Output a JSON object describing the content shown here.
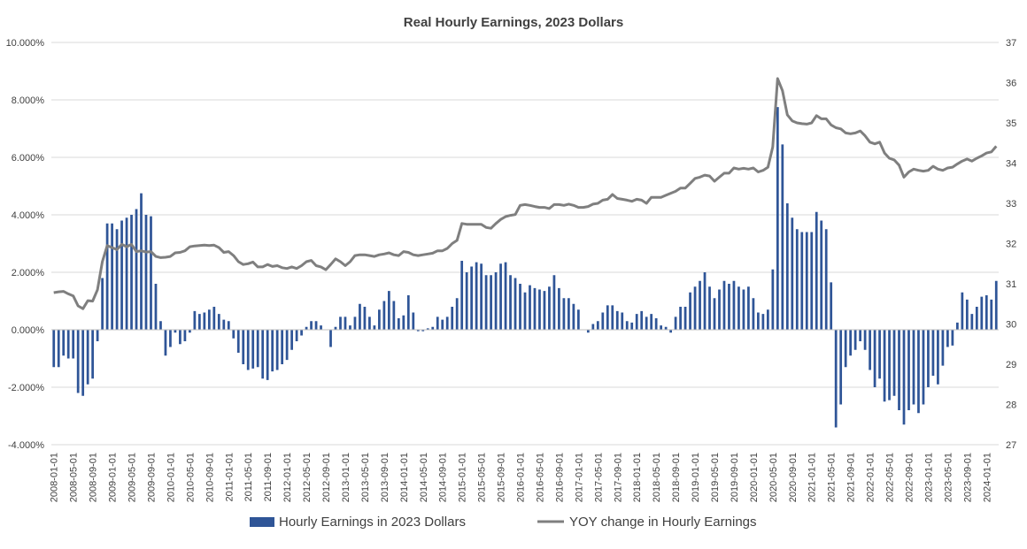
{
  "chart_data": {
    "type": "bar",
    "title": "Real Hourly Earnings, 2023 Dollars",
    "left_axis": {
      "min": -4.0,
      "max": 10.0,
      "step": 2.0,
      "ticks": [
        "-4.000%",
        "-2.000%",
        "0.000%",
        "2.000%",
        "4.000%",
        "6.000%",
        "8.000%",
        "10.000%"
      ]
    },
    "right_axis": {
      "min": 27,
      "max": 37,
      "step": 1,
      "ticks": [
        "27",
        "28",
        "29",
        "30",
        "31",
        "32",
        "33",
        "34",
        "35",
        "36",
        "37"
      ]
    },
    "x_tick_labels": [
      "2008-01-01",
      "2008-05-01",
      "2008-09-01",
      "2009-01-01",
      "2009-05-01",
      "2009-09-01",
      "2010-01-01",
      "2010-05-01",
      "2010-09-01",
      "2011-01-01",
      "2011-05-01",
      "2011-09-01",
      "2012-01-01",
      "2012-05-01",
      "2012-09-01",
      "2013-01-01",
      "2013-05-01",
      "2013-09-01",
      "2014-01-01",
      "2014-05-01",
      "2014-09-01",
      "2015-01-01",
      "2015-05-01",
      "2015-09-01",
      "2016-01-01",
      "2016-05-01",
      "2016-09-01",
      "2017-01-01",
      "2017-05-01",
      "2017-09-01",
      "2018-01-01",
      "2018-05-01",
      "2018-09-01",
      "2019-01-01",
      "2019-05-01",
      "2019-09-01",
      "2020-01-01",
      "2020-05-01",
      "2020-09-01",
      "2021-01-01",
      "2021-05-01",
      "2021-09-01",
      "2022-01-01",
      "2022-05-01",
      "2022-09-01",
      "2023-01-01",
      "2023-05-01",
      "2023-09-01",
      "2024-01-01"
    ],
    "legend": {
      "placement": "bottom",
      "bar_label": "Hourly Earnings in 2023 Dollars",
      "line_label": "YOY change in Hourly Earnings"
    },
    "colors": {
      "bar": "#2f5597",
      "line": "#7f7f7f",
      "grid": "#d9d9d9",
      "text": "#404040"
    },
    "grid": true,
    "series": [
      {
        "kind": "bar",
        "axis": "left",
        "values": [
          -1.3,
          -1.3,
          -0.9,
          -1.0,
          -1.0,
          -2.2,
          -2.3,
          -1.9,
          -1.7,
          -0.4,
          1.8,
          3.7,
          3.7,
          3.5,
          3.8,
          3.9,
          4.0,
          4.2,
          4.75,
          4.0,
          3.95,
          1.6,
          0.3,
          -0.9,
          -0.6,
          -0.1,
          -0.5,
          -0.4,
          -0.1,
          0.65,
          0.55,
          0.6,
          0.7,
          0.8,
          0.55,
          0.35,
          0.3,
          -0.3,
          -0.8,
          -1.2,
          -1.4,
          -1.35,
          -1.3,
          -1.7,
          -1.75,
          -1.45,
          -1.4,
          -1.2,
          -1.05,
          -0.7,
          -0.4,
          -0.2,
          0.1,
          0.3,
          0.3,
          0.15,
          0.0,
          -0.6,
          0.1,
          0.45,
          0.45,
          0.15,
          0.45,
          0.9,
          0.8,
          0.45,
          0.15,
          0.7,
          1.0,
          1.35,
          1.0,
          0.4,
          0.5,
          1.2,
          0.6,
          -0.05,
          -0.05,
          0.05,
          0.1,
          0.45,
          0.35,
          0.45,
          0.8,
          1.1,
          2.4,
          2.0,
          2.2,
          2.35,
          2.3,
          1.9,
          1.9,
          2.0,
          2.3,
          2.35,
          1.9,
          1.8,
          1.6,
          1.3,
          1.55,
          1.45,
          1.4,
          1.35,
          1.5,
          1.9,
          1.45,
          1.1,
          1.1,
          0.9,
          0.7,
          0.0,
          -0.1,
          0.2,
          0.3,
          0.6,
          0.85,
          0.85,
          0.65,
          0.6,
          0.3,
          0.25,
          0.55,
          0.65,
          0.45,
          0.55,
          0.4,
          0.15,
          0.1,
          -0.1,
          0.45,
          0.8,
          0.8,
          1.3,
          1.5,
          1.7,
          2.0,
          1.5,
          1.1,
          1.4,
          1.7,
          1.6,
          1.7,
          1.5,
          1.4,
          1.5,
          1.1,
          0.6,
          0.55,
          0.7,
          2.1,
          7.75,
          6.45,
          4.4,
          3.9,
          3.5,
          3.4,
          3.4,
          3.4,
          4.1,
          3.8,
          3.5,
          1.65,
          -3.4,
          -2.6,
          -1.3,
          -0.9,
          -0.7,
          -0.4,
          -0.7,
          -1.4,
          -2.0,
          -1.7,
          -2.5,
          -2.45,
          -2.3,
          -2.8,
          -3.3,
          -2.8,
          -2.6,
          -2.9,
          -2.6,
          -2.0,
          -1.6,
          -1.9,
          -1.25,
          -0.6,
          -0.55,
          0.25,
          1.3,
          1.05,
          0.55,
          0.8,
          1.15,
          1.2,
          1.05,
          1.7
        ]
      },
      {
        "kind": "line",
        "axis": "right",
        "values": [
          30.78,
          30.8,
          30.81,
          30.75,
          30.7,
          30.45,
          30.38,
          30.58,
          30.57,
          30.85,
          31.55,
          31.95,
          31.9,
          31.85,
          31.98,
          31.92,
          31.98,
          31.8,
          31.82,
          31.79,
          31.8,
          31.68,
          31.65,
          31.66,
          31.68,
          31.77,
          31.78,
          31.82,
          31.92,
          31.94,
          31.95,
          31.96,
          31.95,
          31.96,
          31.9,
          31.78,
          31.8,
          31.7,
          31.55,
          31.48,
          31.5,
          31.54,
          31.42,
          31.42,
          31.48,
          31.43,
          31.45,
          31.4,
          31.38,
          31.42,
          31.38,
          31.45,
          31.55,
          31.58,
          31.45,
          31.42,
          31.35,
          31.48,
          31.62,
          31.55,
          31.45,
          31.55,
          31.7,
          31.72,
          31.72,
          31.7,
          31.68,
          31.72,
          31.74,
          31.77,
          31.72,
          31.7,
          31.8,
          31.78,
          31.72,
          31.7,
          31.72,
          31.74,
          31.76,
          31.82,
          31.82,
          31.88,
          32.0,
          32.08,
          32.5,
          32.48,
          32.48,
          32.48,
          32.48,
          32.4,
          32.38,
          32.5,
          32.6,
          32.67,
          32.7,
          32.72,
          32.95,
          32.97,
          32.95,
          32.92,
          32.9,
          32.9,
          32.87,
          32.97,
          32.97,
          32.95,
          32.98,
          32.95,
          32.9,
          32.9,
          32.92,
          32.98,
          33.0,
          33.08,
          33.1,
          33.22,
          33.12,
          33.1,
          33.08,
          33.05,
          33.1,
          33.08,
          33.0,
          33.15,
          33.15,
          33.15,
          33.2,
          33.25,
          33.3,
          33.38,
          33.38,
          33.5,
          33.62,
          33.65,
          33.7,
          33.68,
          33.55,
          33.65,
          33.75,
          33.75,
          33.88,
          33.85,
          33.87,
          33.85,
          33.88,
          33.78,
          33.82,
          33.9,
          34.4,
          36.1,
          35.8,
          35.2,
          35.05,
          35.0,
          34.98,
          34.97,
          35.0,
          35.18,
          35.1,
          35.1,
          34.95,
          34.88,
          34.85,
          34.75,
          34.73,
          34.75,
          34.8,
          34.68,
          34.52,
          34.48,
          34.52,
          34.25,
          34.12,
          34.08,
          33.95,
          33.65,
          33.78,
          33.85,
          33.82,
          33.8,
          33.82,
          33.92,
          33.85,
          33.82,
          33.88,
          33.9,
          33.98,
          34.05,
          34.1,
          34.05,
          34.12,
          34.18,
          34.25,
          34.28,
          34.42
        ]
      }
    ]
  }
}
